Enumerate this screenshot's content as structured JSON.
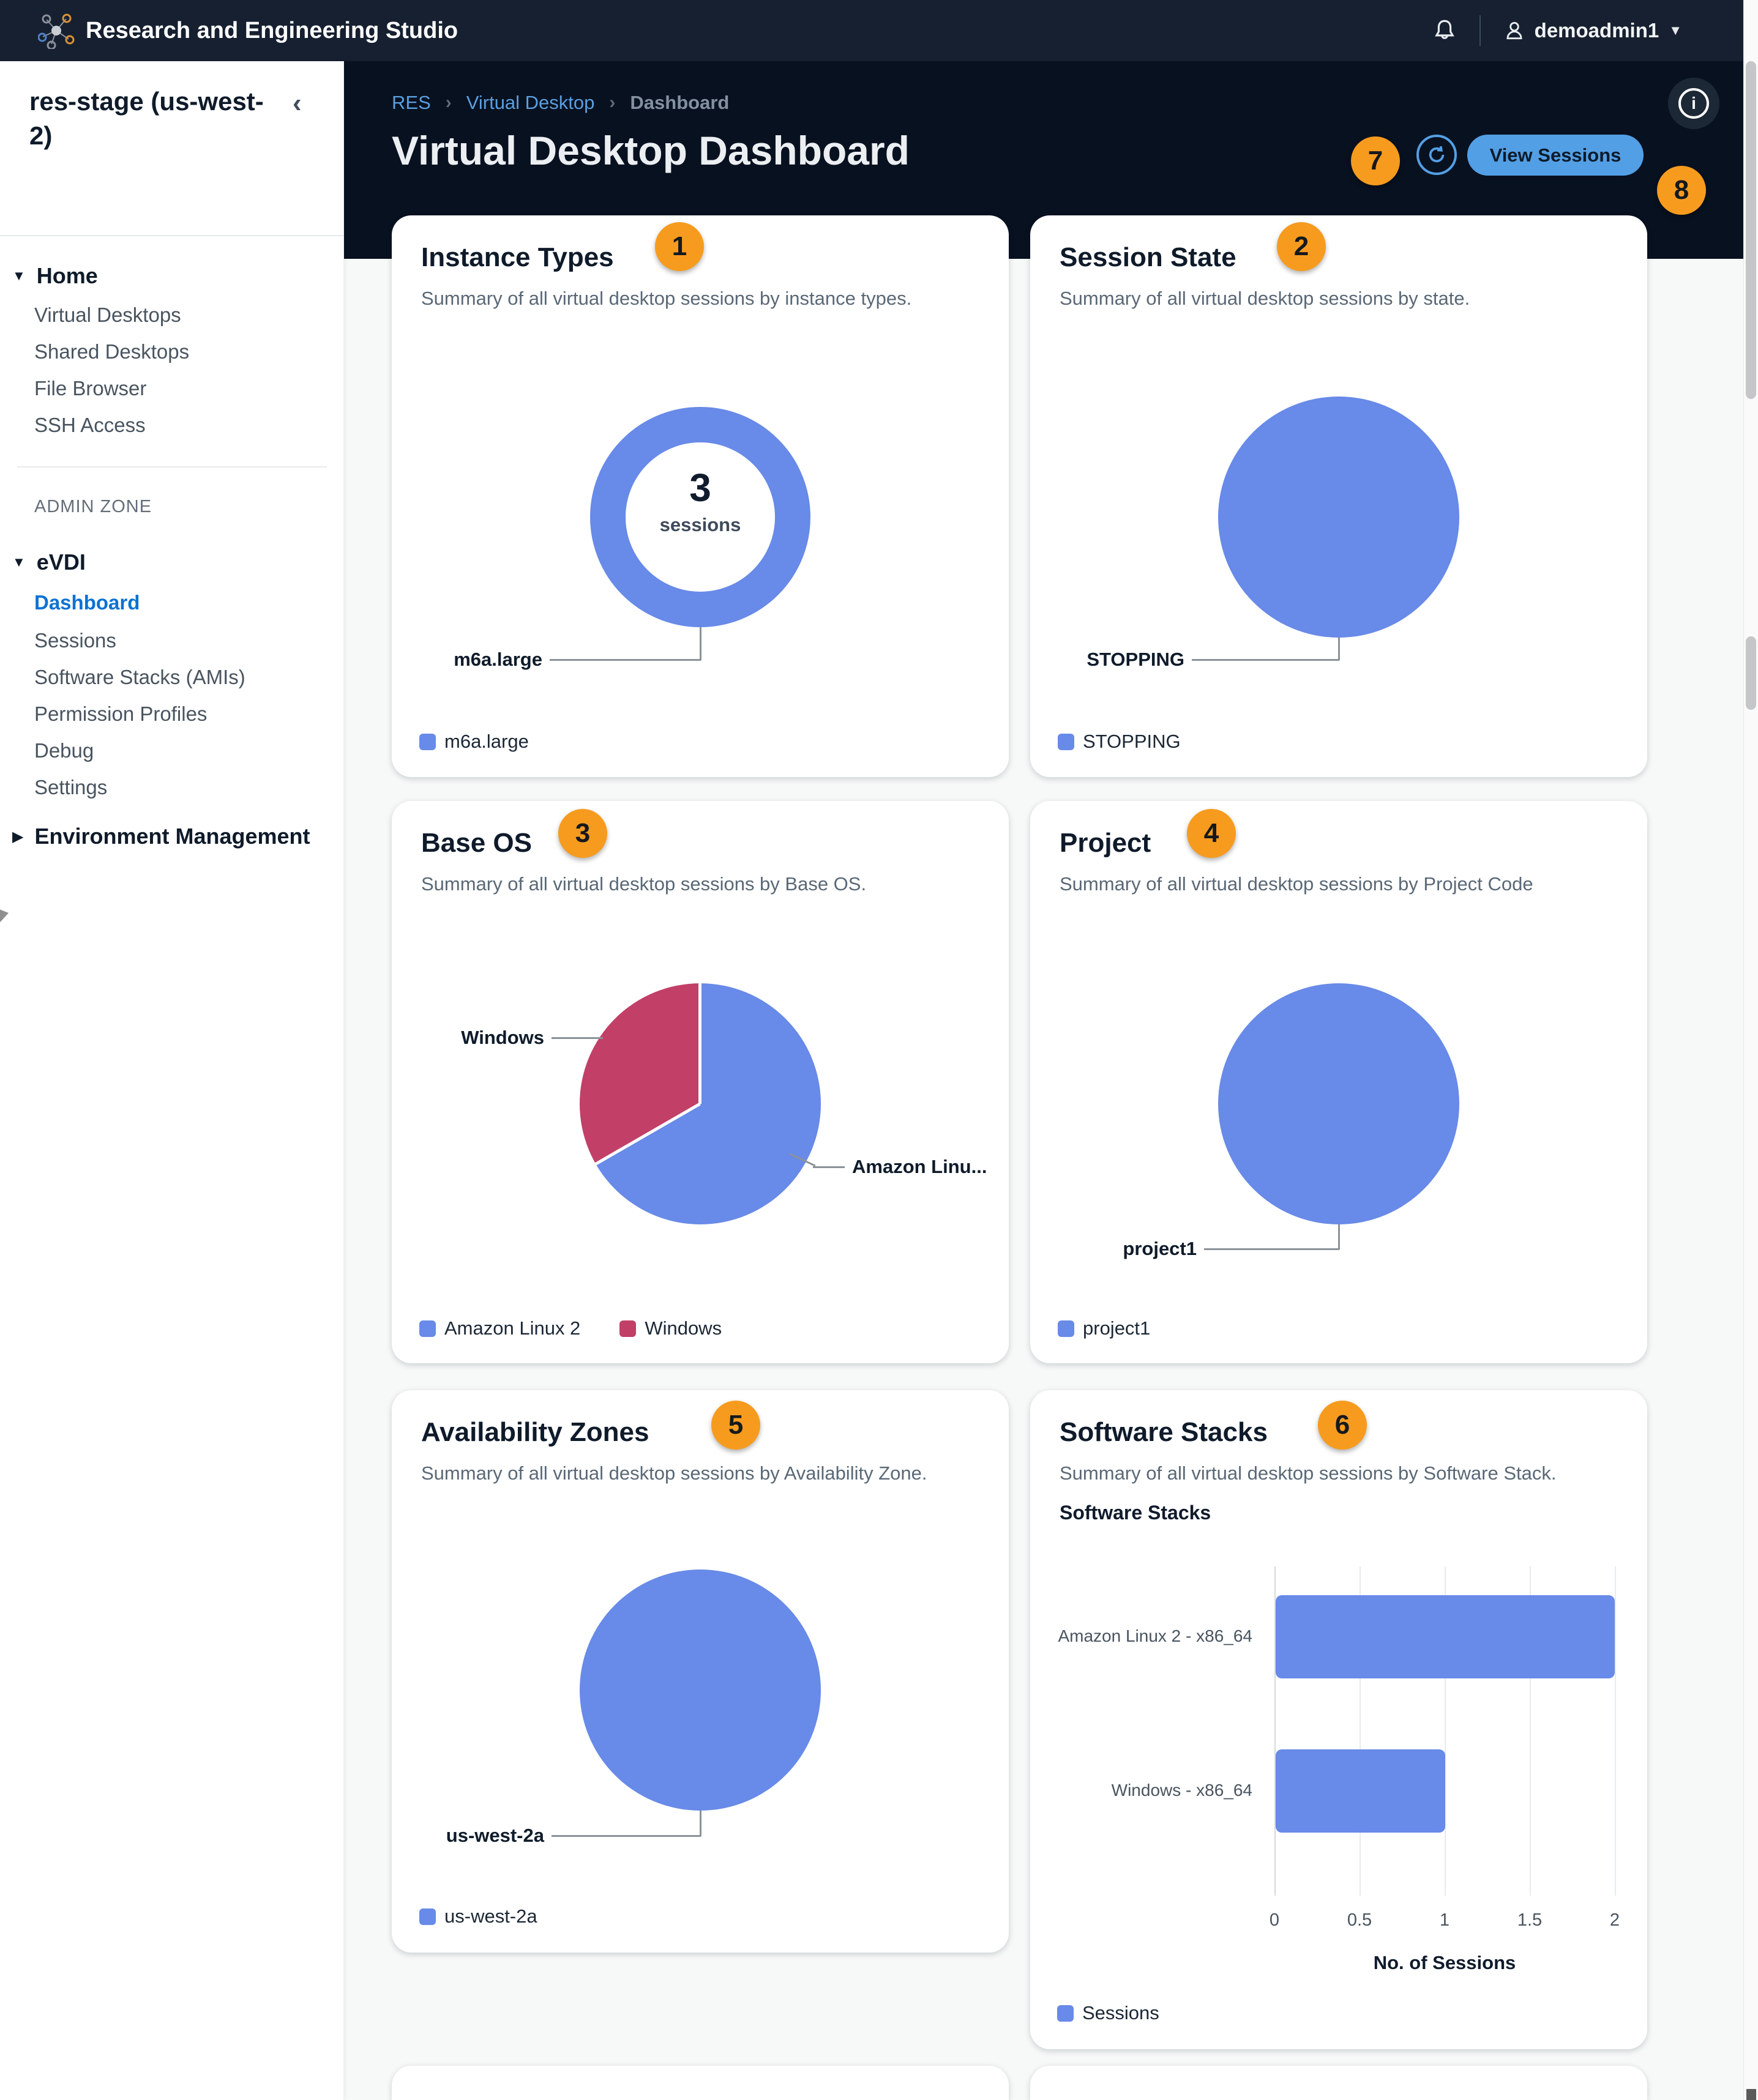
{
  "topbar": {
    "app_title": "Research and Engineering Studio",
    "username": "demoadmin1"
  },
  "sidebar": {
    "environment": "res-stage (us-west-2)",
    "home": {
      "label": "Home",
      "items": [
        "Virtual Desktops",
        "Shared Desktops",
        "File Browser",
        "SSH Access"
      ]
    },
    "admin_zone": "ADMIN ZONE",
    "evdi": {
      "label": "eVDI",
      "items": [
        "Dashboard",
        "Sessions",
        "Software Stacks (AMIs)",
        "Permission Profiles",
        "Debug",
        "Settings"
      ]
    },
    "active_item": "Dashboard",
    "env_mgmt": "Environment Management"
  },
  "breadcrumb": {
    "items": [
      "RES",
      "Virtual Desktop",
      "Dashboard"
    ]
  },
  "header": {
    "title": "Virtual Desktop Dashboard",
    "view_sessions": "View Sessions"
  },
  "annotations": {
    "badges": [
      "1",
      "2",
      "3",
      "4",
      "5",
      "6",
      "7",
      "8"
    ]
  },
  "colors": {
    "chart_blue": "#688ae8",
    "chart_red": "#c23f68",
    "badge_orange": "#f79b1e",
    "button_blue": "#539fe5",
    "active_link_blue": "#0b72d3"
  },
  "cards": {
    "instance_types": {
      "title": "Instance Types",
      "subtitle": "Summary of all virtual desktop sessions by instance types.",
      "center_value": "3",
      "center_label": "sessions",
      "callout": "m6a.large",
      "legend": [
        "m6a.large"
      ]
    },
    "session_state": {
      "title": "Session State",
      "subtitle": "Summary of all virtual desktop sessions by state.",
      "callout": "STOPPING",
      "legend": [
        "STOPPING"
      ]
    },
    "base_os": {
      "title": "Base OS",
      "subtitle": "Summary of all virtual desktop sessions by Base OS.",
      "callout_left": "Windows",
      "callout_right": "Amazon Linu...",
      "legend": [
        "Amazon Linux 2",
        "Windows"
      ]
    },
    "project": {
      "title": "Project",
      "subtitle": "Summary of all virtual desktop sessions by Project Code",
      "callout": "project1",
      "legend": [
        "project1"
      ]
    },
    "availability_zones": {
      "title": "Availability Zones",
      "subtitle": "Summary of all virtual desktop sessions by Availability Zone.",
      "callout": "us-west-2a",
      "legend": [
        "us-west-2a"
      ]
    },
    "software_stacks": {
      "title": "Software Stacks",
      "subtitle": "Summary of all virtual desktop sessions by Software Stack.",
      "chart_label": "Software Stacks",
      "xlabel": "No. of Sessions",
      "xticks": [
        "0",
        "0.5",
        "1",
        "1.5",
        "2"
      ],
      "categories": [
        "Amazon Linux 2 - x86_64",
        "Windows - x86_64"
      ],
      "legend": [
        "Sessions"
      ]
    }
  },
  "chart_data": [
    {
      "id": "instance_types",
      "type": "pie",
      "subtype": "donut",
      "title": "Instance Types",
      "categories": [
        "m6a.large"
      ],
      "values": [
        3
      ],
      "colors": [
        "#688ae8"
      ],
      "center_text": [
        "3",
        "sessions"
      ],
      "legend": [
        "m6a.large"
      ],
      "legend_position": "bottom"
    },
    {
      "id": "session_state",
      "type": "pie",
      "title": "Session State",
      "categories": [
        "STOPPING"
      ],
      "values": [
        3
      ],
      "colors": [
        "#688ae8"
      ],
      "legend": [
        "STOPPING"
      ],
      "legend_position": "bottom"
    },
    {
      "id": "base_os",
      "type": "pie",
      "title": "Base OS",
      "categories": [
        "Amazon Linux 2",
        "Windows"
      ],
      "values": [
        2,
        1
      ],
      "colors": [
        "#688ae8",
        "#c23f68"
      ],
      "legend": [
        "Amazon Linux 2",
        "Windows"
      ],
      "legend_position": "bottom"
    },
    {
      "id": "project",
      "type": "pie",
      "title": "Project",
      "categories": [
        "project1"
      ],
      "values": [
        3
      ],
      "colors": [
        "#688ae8"
      ],
      "legend": [
        "project1"
      ],
      "legend_position": "bottom"
    },
    {
      "id": "availability_zones",
      "type": "pie",
      "title": "Availability Zones",
      "categories": [
        "us-west-2a"
      ],
      "values": [
        3
      ],
      "colors": [
        "#688ae8"
      ],
      "legend": [
        "us-west-2a"
      ],
      "legend_position": "bottom"
    },
    {
      "id": "software_stacks",
      "type": "bar",
      "orientation": "horizontal",
      "title": "Software Stacks",
      "categories": [
        "Amazon Linux 2 - x86_64",
        "Windows - x86_64"
      ],
      "values": [
        2,
        1
      ],
      "xlabel": "No. of Sessions",
      "ylabel": "",
      "xlim": [
        0,
        2
      ],
      "xticks": [
        0,
        0.5,
        1,
        1.5,
        2
      ],
      "grid": true,
      "legend": [
        "Sessions"
      ],
      "legend_position": "bottom",
      "color": "#688ae8"
    }
  ]
}
